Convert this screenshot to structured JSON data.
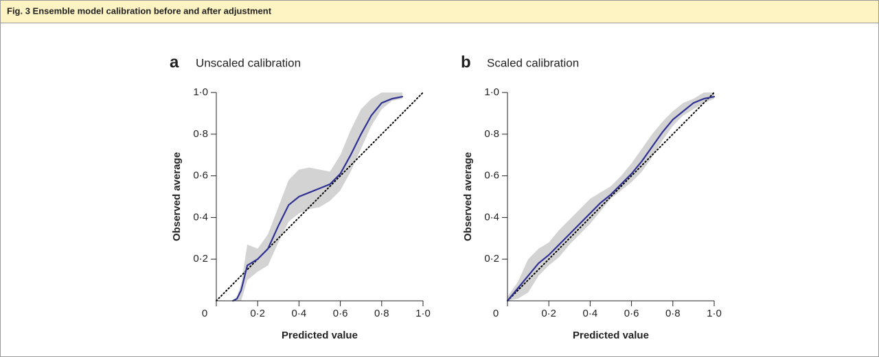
{
  "header": {
    "title": "Fig. 3 Ensemble model calibration before and after adjustment"
  },
  "chart_data": [
    {
      "type": "line",
      "panel": "a",
      "title": "Unscaled calibration",
      "xlabel": "Predicted value",
      "ylabel": "Observed average",
      "x": [
        0,
        0.05,
        0.08,
        0.1,
        0.12,
        0.15,
        0.2,
        0.25,
        0.3,
        0.35,
        0.4,
        0.45,
        0.5,
        0.55,
        0.6,
        0.65,
        0.7,
        0.75,
        0.8,
        0.85,
        0.9,
        0.95,
        1.0
      ],
      "band": {
        "color": "#d3d3d3",
        "lower": [
          null,
          null,
          0,
          0,
          0,
          0.1,
          0.14,
          0.17,
          0.28,
          0.38,
          0.42,
          0.44,
          0.45,
          0.48,
          0.53,
          0.62,
          0.73,
          0.84,
          0.92,
          0.96,
          0.97,
          null,
          null
        ],
        "upper": [
          null,
          null,
          0,
          0.02,
          0.08,
          0.27,
          0.25,
          0.32,
          0.45,
          0.58,
          0.63,
          0.64,
          0.63,
          0.62,
          0.7,
          0.82,
          0.92,
          0.97,
          1.0,
          1.0,
          1.0,
          null,
          null
        ]
      },
      "series": [
        {
          "color": "#000000",
          "style": "dotted",
          "values": [
            0,
            0.05,
            0.08,
            0.1,
            0.12,
            0.15,
            0.2,
            0.25,
            0.3,
            0.35,
            0.4,
            0.45,
            0.5,
            0.55,
            0.6,
            0.65,
            0.7,
            0.75,
            0.8,
            0.85,
            0.9,
            0.95,
            1.0
          ]
        },
        {
          "color": "#2e3192",
          "style": "solid",
          "values": [
            null,
            null,
            0,
            0.01,
            0.05,
            0.17,
            0.2,
            0.25,
            0.36,
            0.46,
            0.5,
            0.52,
            0.54,
            0.56,
            0.61,
            0.7,
            0.8,
            0.89,
            0.95,
            0.97,
            0.98,
            null,
            null
          ]
        }
      ],
      "xlim": [
        0,
        1
      ],
      "ylim": [
        0,
        1
      ],
      "xticks": [
        0,
        {
          "value": 0.2,
          "label": "0·2"
        },
        {
          "value": 0.4,
          "label": "0·4"
        },
        {
          "value": 0.6,
          "label": "0·6"
        },
        {
          "value": 0.8,
          "label": "0·8"
        },
        {
          "value": 1,
          "label": "1·0"
        }
      ],
      "yticks": [
        {
          "value": 0.2,
          "label": "0·2"
        },
        {
          "value": 0.4,
          "label": "0·4"
        },
        {
          "value": 0.6,
          "label": "0·6"
        },
        {
          "value": 0.8,
          "label": "0·8"
        },
        {
          "value": 1,
          "label": "1·0"
        }
      ]
    },
    {
      "type": "line",
      "panel": "b",
      "title": "Scaled calibration",
      "xlabel": "Predicted value",
      "ylabel": "Observed average",
      "x": [
        0,
        0.05,
        0.1,
        0.15,
        0.2,
        0.25,
        0.3,
        0.35,
        0.4,
        0.45,
        0.5,
        0.55,
        0.6,
        0.65,
        0.7,
        0.75,
        0.8,
        0.85,
        0.9,
        0.95,
        1.0
      ],
      "band": {
        "color": "#d3d3d3",
        "lower": [
          0,
          0.01,
          0.04,
          0.12,
          0.17,
          0.21,
          0.27,
          0.32,
          0.37,
          0.43,
          0.49,
          0.53,
          0.57,
          0.62,
          0.69,
          0.77,
          0.84,
          0.89,
          0.92,
          0.95,
          0.97
        ],
        "upper": [
          0.02,
          0.09,
          0.2,
          0.25,
          0.28,
          0.34,
          0.39,
          0.44,
          0.49,
          0.52,
          0.55,
          0.6,
          0.66,
          0.73,
          0.8,
          0.86,
          0.91,
          0.95,
          0.97,
          1.0,
          1.0
        ]
      },
      "series": [
        {
          "color": "#000000",
          "style": "dotted",
          "values": [
            0,
            0.05,
            0.1,
            0.15,
            0.2,
            0.25,
            0.3,
            0.35,
            0.4,
            0.45,
            0.5,
            0.55,
            0.6,
            0.65,
            0.7,
            0.75,
            0.8,
            0.85,
            0.9,
            0.95,
            1.0
          ]
        },
        {
          "color": "#2e3192",
          "style": "solid",
          "values": [
            0,
            0.06,
            0.12,
            0.18,
            0.22,
            0.27,
            0.32,
            0.37,
            0.42,
            0.47,
            0.51,
            0.56,
            0.61,
            0.67,
            0.74,
            0.81,
            0.87,
            0.91,
            0.95,
            0.97,
            0.98
          ]
        }
      ],
      "xlim": [
        0,
        1
      ],
      "ylim": [
        0,
        1
      ],
      "xticks": [
        0,
        {
          "value": 0.2,
          "label": "0·2"
        },
        {
          "value": 0.4,
          "label": "0·4"
        },
        {
          "value": 0.6,
          "label": "0·6"
        },
        {
          "value": 0.8,
          "label": "0·8"
        },
        {
          "value": 1,
          "label": "1·0"
        }
      ],
      "yticks": [
        {
          "value": 0.2,
          "label": "0·2"
        },
        {
          "value": 0.4,
          "label": "0·4"
        },
        {
          "value": 0.6,
          "label": "0·6"
        },
        {
          "value": 0.8,
          "label": "0·8"
        },
        {
          "value": 1,
          "label": "1·0"
        }
      ]
    }
  ]
}
